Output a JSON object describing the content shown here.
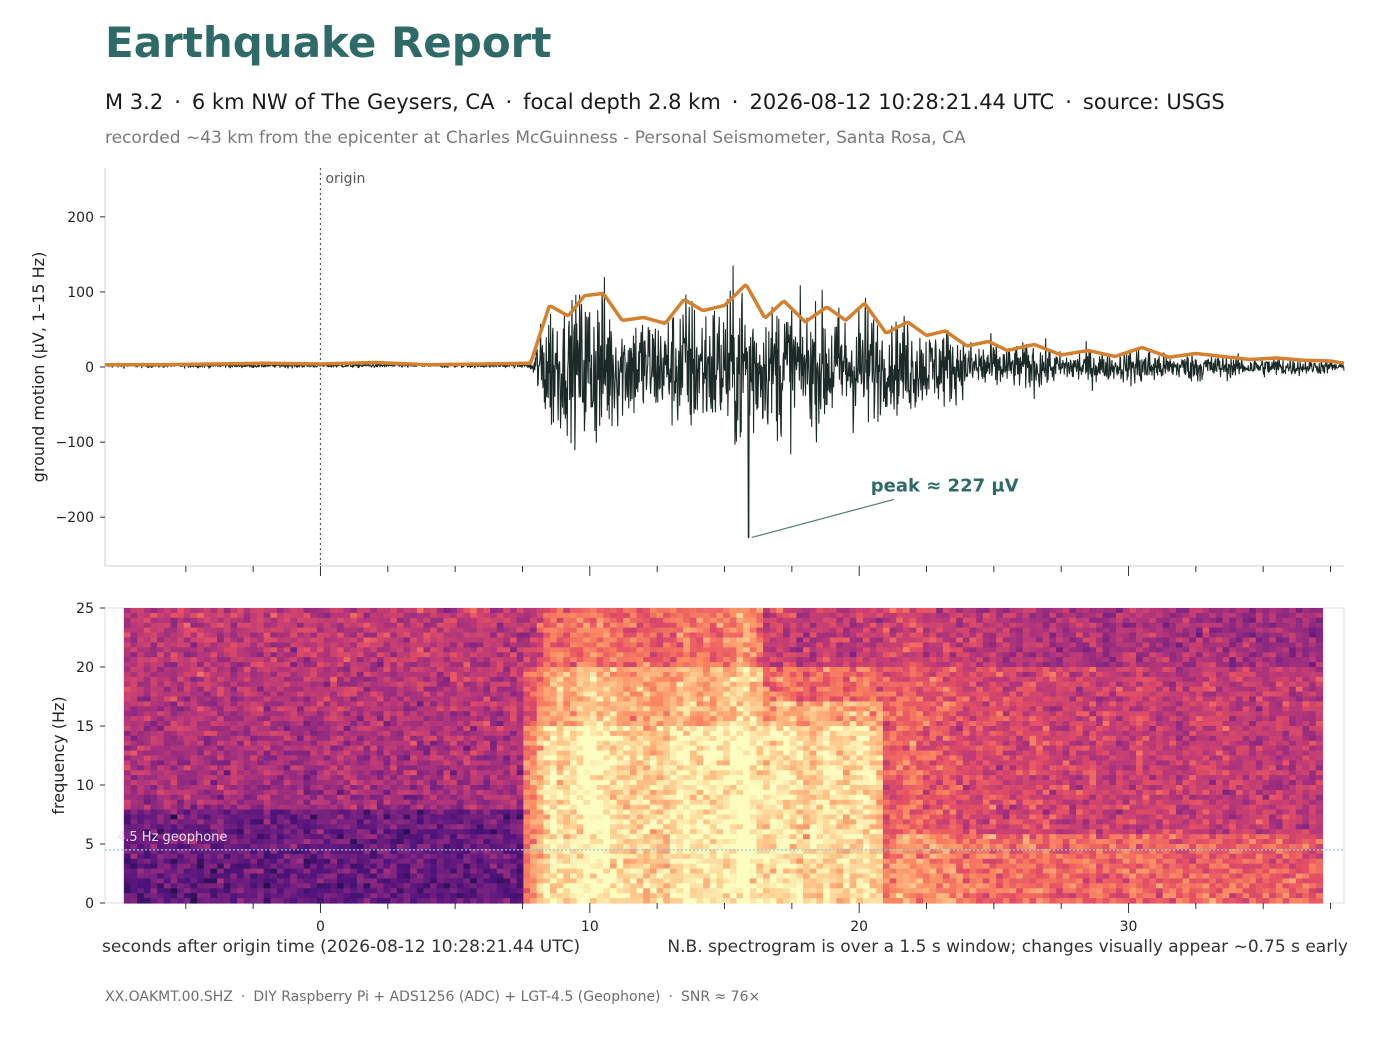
{
  "header": {
    "title": "Earthquake Report",
    "magnitude": "M 3.2",
    "location": "6 km NW of The Geysers, CA",
    "depth": "focal depth 2.8 km",
    "datetime": "2026-08-12 10:28:21.44 UTC",
    "source": "source: USGS",
    "separator": "·",
    "recorded": "recorded ~43 km from the epicenter at Charles McGuinness - Personal Seismometer, Santa Rosa, CA"
  },
  "colors": {
    "title": "#2e6b68",
    "trace": "#1c2a27",
    "envelope": "#d4802f",
    "origin_line": "#555555",
    "annotation": "#2e6b68",
    "geophone_line": "#8fd0e0"
  },
  "chart_data": [
    {
      "type": "line",
      "name": "seismogram",
      "ylabel": "ground motion  (µV, 1–15 Hz)",
      "xlim": [
        -8,
        38
      ],
      "ylim": [
        -265,
        265
      ],
      "yticks": [
        -200,
        -100,
        0,
        100,
        200
      ],
      "ytick_labels": [
        "−200",
        "−100",
        "0",
        "100",
        "200"
      ],
      "origin_label": "origin",
      "origin_x": 0,
      "peak": {
        "label": "peak ≈ 227 µV",
        "x": 15.9,
        "y": -227
      },
      "p_arrival_s": 8.0,
      "series": [
        {
          "name": "trace",
          "values_description": ""
        },
        {
          "name": "envelope",
          "x": [
            -8,
            -6,
            -4,
            -2,
            0,
            2,
            4,
            6,
            7.8,
            8.5,
            9.2,
            9.8,
            10.5,
            11.2,
            12,
            12.8,
            13.5,
            14.2,
            15,
            15.8,
            16.5,
            17.2,
            18,
            18.8,
            19.5,
            20.2,
            21,
            21.8,
            22.5,
            23.2,
            24,
            24.8,
            25.5,
            26.5,
            27.5,
            28.5,
            29.5,
            30.5,
            31.5,
            32.5,
            33.5,
            34.5,
            35.5,
            36.5,
            37.5,
            38
          ],
          "y": [
            3,
            3,
            4,
            5,
            4,
            6,
            3,
            4,
            5,
            82,
            68,
            95,
            98,
            62,
            66,
            58,
            90,
            75,
            82,
            110,
            65,
            88,
            60,
            80,
            62,
            85,
            45,
            60,
            42,
            48,
            28,
            34,
            22,
            30,
            16,
            22,
            14,
            26,
            13,
            18,
            14,
            10,
            12,
            9,
            8,
            5
          ]
        }
      ]
    },
    {
      "type": "heatmap",
      "name": "spectrogram",
      "ylabel": "frequency (Hz)",
      "xlabel": "seconds after origin time  (2026-08-12 10:28:21.44 UTC)",
      "note": "N.B. spectrogram is over a 1.5 s window; changes visually appear ~0.75 s early",
      "xlim": [
        -8,
        38
      ],
      "ylim": [
        0,
        25
      ],
      "yticks": [
        0,
        5,
        10,
        15,
        20,
        25
      ],
      "xticks_major": [
        0,
        10,
        20,
        30
      ],
      "xticks_minor": [
        -5,
        -2.5,
        2.5,
        5,
        7.5,
        12.5,
        15,
        17.5,
        22.5,
        25,
        27.5,
        32.5,
        35,
        37.5
      ],
      "colormap": "magma",
      "geophone_label": "4.5 Hz geophone",
      "geophone_hz": 4.5
    }
  ],
  "footer": {
    "channel": "XX.OAKMT.00.SHZ",
    "hardware": "DIY Raspberry Pi + ADS1256 (ADC) + LGT-4.5 (Geophone)",
    "snr": "SNR ≈ 76×",
    "separator": "·"
  }
}
